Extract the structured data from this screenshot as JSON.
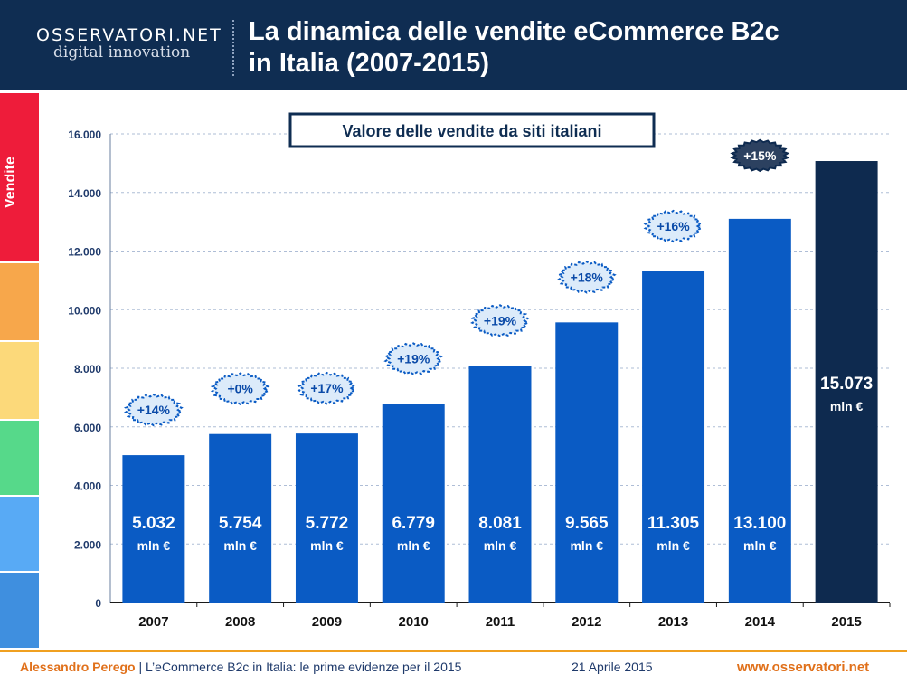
{
  "header": {
    "logo_main": "OSSERVATORI.NET",
    "logo_sub": "digital innovation",
    "title_line1": "La dinamica delle vendite eCommerce B2c",
    "title_line2": "in Italia (2007-2015)"
  },
  "sidebar": {
    "label": "Vendite",
    "band_colors": [
      "#ee1c3a",
      "#f7a74b",
      "#fcd97a",
      "#56d98a",
      "#58aaf5",
      "#3f8fdf"
    ]
  },
  "colors": {
    "bar": "#0a5bc4",
    "bar_highlight": "#0e2a4f",
    "badge_fill": "#dcebfa",
    "badge_stroke": "#0a5bc4",
    "badge_highlight_fill": "#2c4160",
    "text_dark": "#1f3a6b"
  },
  "chart_data": {
    "type": "bar",
    "title": "Valore delle vendite da siti italiani",
    "categories": [
      "2007",
      "2008",
      "2009",
      "2010",
      "2011",
      "2012",
      "2013",
      "2014",
      "2015"
    ],
    "values": [
      5032,
      5754,
      5772,
      6779,
      8081,
      9565,
      11305,
      13100,
      15073
    ],
    "value_labels": [
      "5.032",
      "5.754",
      "5.772",
      "6.779",
      "8.081",
      "9.565",
      "11.305",
      "13.100",
      "15.073"
    ],
    "unit_label": "mln €",
    "growth_labels": [
      "+14%",
      "+0%",
      "+17%",
      "+19%",
      "+19%",
      "+18%",
      "+16%",
      "+15%"
    ],
    "yticks": [
      "0",
      "2.000",
      "4.000",
      "6.000",
      "8.000",
      "10.000",
      "12.000",
      "14.000",
      "16.000"
    ],
    "ylim": [
      0,
      16000
    ],
    "xlabel": "",
    "ylabel": "",
    "grid": true,
    "highlight_index": 8
  },
  "footer": {
    "author": "Alessandro Perego",
    "separator": "|",
    "subtitle": "L’eCommerce B2c in Italia: le prime evidenze per il 2015",
    "date": "21 Aprile 2015",
    "url": "www.osservatori.net"
  }
}
